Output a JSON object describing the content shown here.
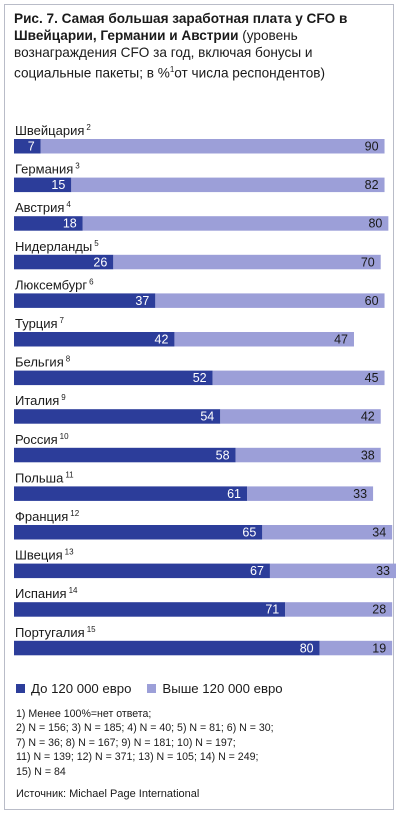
{
  "colors": {
    "low": "#2c3d9a",
    "high": "#9c9fd8",
    "label_on_low": "#ffffff",
    "label_on_high": "#1a1a1a"
  },
  "title": {
    "bold": "Рис. 7. Самая большая заработная плата у CFO в Швейцарии, Германии и Австрии",
    "normal": " (уровень вознаграждения CFO за год, включая бонусы и социальные пакеты; в %",
    "sup": "1",
    "end": "от числа респондентов)"
  },
  "chart_data": {
    "type": "bar",
    "stacked": true,
    "orientation": "horizontal",
    "series": [
      {
        "name": "До 120 000 евро",
        "values": [
          7,
          15,
          18,
          26,
          37,
          42,
          52,
          54,
          58,
          61,
          65,
          67,
          71,
          80
        ]
      },
      {
        "name": "Выше 120 000 евро",
        "values": [
          90,
          82,
          80,
          70,
          60,
          47,
          45,
          42,
          38,
          33,
          34,
          33,
          28,
          19
        ]
      }
    ],
    "categories": [
      "Швейцария",
      "Германия",
      "Австрия",
      "Нидерланды",
      "Люксембург",
      "Турция",
      "Бельгия",
      "Италия",
      "Россия",
      "Польша",
      "Франция",
      "Швеция",
      "Испания",
      "Португалия"
    ],
    "note_refs": [
      "2",
      "3",
      "4",
      "5",
      "6",
      "7",
      "8",
      "9",
      "10",
      "11",
      "12",
      "13",
      "14",
      "15"
    ],
    "xlim": [
      0,
      100
    ],
    "legend": "bottom"
  },
  "notes": [
    "1)   Менее 100%=нет ответа;",
    "2)   N = 156;   3)   N = 185;   4)   N = 40;   5)   N = 81;   6)   N = 30;",
    "7)   N = 36;   8)   N = 167;   9)   N = 181;   10)   N = 197;",
    "11)   N = 139;   12)   N = 371;   13)   N = 105;   14)   N = 249;",
    "15)   N = 84"
  ],
  "source": "Источник: Michael Page International"
}
